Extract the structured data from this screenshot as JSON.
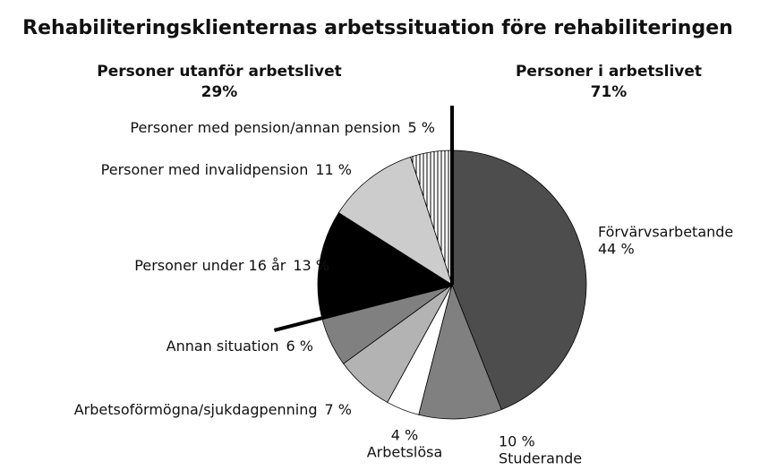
{
  "chart_data": {
    "type": "pie",
    "title": "Rehabiliteringsklienternas arbetssituation före rehabiliteringen",
    "categories": [
      "Förvärvsarbetande",
      "Studerande",
      "Arbetslösa",
      "Arbetsoförmögna/sjukdagpenning",
      "Annan situation",
      "Personer under 16 år",
      "Personer med invalidpension",
      "Personer med pension/annan pension"
    ],
    "values": [
      44,
      10,
      4,
      7,
      6,
      13,
      11,
      5
    ],
    "value_labels": [
      "44 %",
      "10 %",
      "4 %",
      "7 %",
      "6 %",
      "13 %",
      "11 %",
      "5 %"
    ],
    "colors": [
      "#4d4d4d",
      "#808080",
      "#ffffff",
      "#b3b3b3",
      "#808080",
      "#000000",
      "#cccccc",
      "#ffffff"
    ],
    "hatched": [
      false,
      false,
      false,
      false,
      false,
      false,
      false,
      true
    ],
    "groups": [
      {
        "name": "Personer i arbetslivet",
        "value": 71,
        "value_label": "71%"
      },
      {
        "name": "Personer utanför arbetslivet",
        "value": 29,
        "value_label": "29%"
      }
    ]
  }
}
